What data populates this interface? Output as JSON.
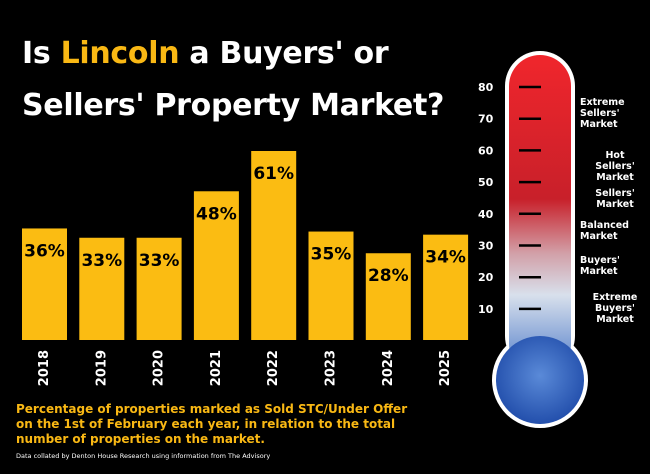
{
  "title": {
    "part1": "Is ",
    "highlight": "Lincoln",
    "part2": " a Buyers' or",
    "line2": "Sellers' Property Market?"
  },
  "colors": {
    "background": "#000000",
    "bar": "#fbbc12",
    "accent": "#f9b814",
    "thermo_hot": "#e8242a",
    "thermo_cold": "#2454b4"
  },
  "chart_data": {
    "type": "bar",
    "categories": [
      "2018",
      "2019",
      "2020",
      "2021",
      "2022",
      "2023",
      "2024",
      "2025"
    ],
    "values": [
      36,
      33,
      33,
      48,
      61,
      35,
      28,
      34
    ],
    "value_labels": [
      "36%",
      "33%",
      "33%",
      "48%",
      "61%",
      "35%",
      "28%",
      "34%"
    ],
    "unit": "%",
    "title": "Is Lincoln a Buyers' or Sellers' Property Market?",
    "xlabel": "",
    "ylabel": "",
    "grid": false,
    "legend": "none"
  },
  "caption": "Percentage of properties marked as Sold STC/Under Offer on the 1st of February each year, in relation to the total number of properties on the market.",
  "source": "Data collated by Denton House Research using information from The Advisory",
  "thermometer": {
    "ticks": [
      "80",
      "70",
      "60",
      "50",
      "40",
      "30",
      "20",
      "10"
    ],
    "zones": [
      {
        "label": "Extreme Sellers' Market",
        "lines": [
          "Extreme",
          "Sellers'",
          "Market"
        ]
      },
      {
        "label": "Hot Sellers' Market",
        "lines": [
          "Hot",
          "Sellers'",
          "Market"
        ]
      },
      {
        "label": "Sellers' Market",
        "lines": [
          "Sellers'",
          "Market"
        ]
      },
      {
        "label": "Balanced Market",
        "lines": [
          "Balanced",
          "Market"
        ]
      },
      {
        "label": "Buyers' Market",
        "lines": [
          "Buyers'",
          "Market"
        ]
      },
      {
        "label": "Extreme Buyers' Market",
        "lines": [
          "Extreme",
          "Buyers'",
          "Market"
        ]
      }
    ]
  }
}
